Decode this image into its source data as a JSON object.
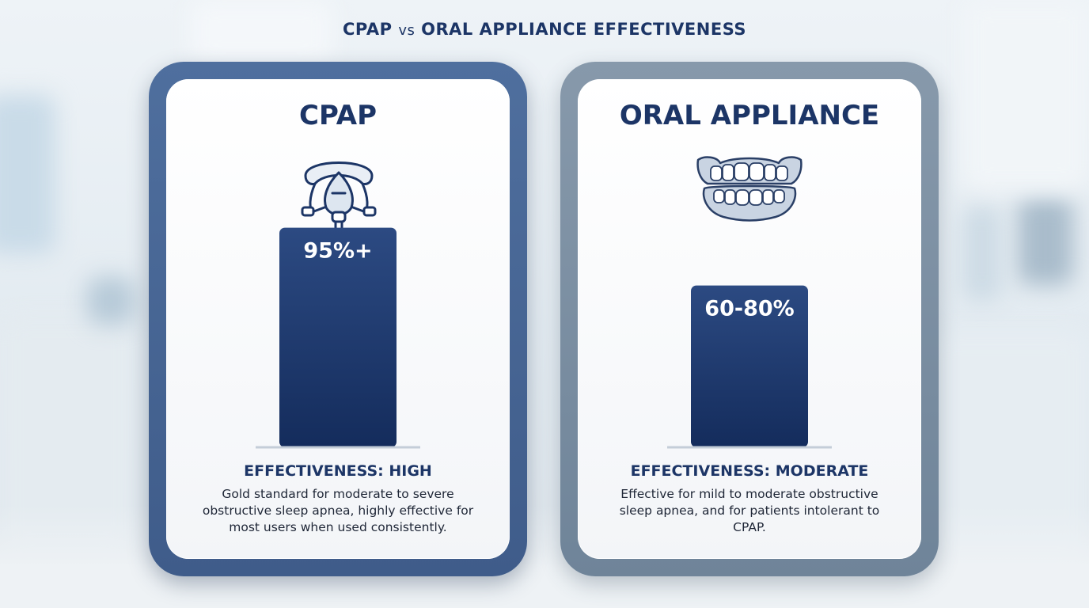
{
  "title": {
    "main_a": "CPAP",
    "vs": "vs",
    "main_b": "ORAL APPLIANCE EFFECTIVENESS"
  },
  "colors": {
    "navy": "#1c3566",
    "bar": "#1f3a6e",
    "cpap_frame": "#4f6f9e",
    "oral_frame": "#8799ab"
  },
  "chart_data": {
    "type": "bar",
    "categories": [
      "CPAP",
      "ORAL APPLIANCE"
    ],
    "values": [
      95,
      70
    ],
    "value_labels": [
      "95%+",
      "60-80%"
    ],
    "ylim": [
      0,
      100
    ]
  },
  "cards": [
    {
      "title": "CPAP",
      "icon": "cpap-mask-icon",
      "effectiveness": "EFFECTIVENESS: HIGH",
      "description": "Gold standard for moderate to severe obstructive sleep apnea, highly effective for most users when used consistently."
    },
    {
      "title": "ORAL APPLIANCE",
      "icon": "dental-appliance-icon",
      "effectiveness": "EFFECTIVENESS: MODERATE",
      "description": "Effective for mild to moderate obstructive sleep apnea, and for patients intolerant to CPAP."
    }
  ]
}
